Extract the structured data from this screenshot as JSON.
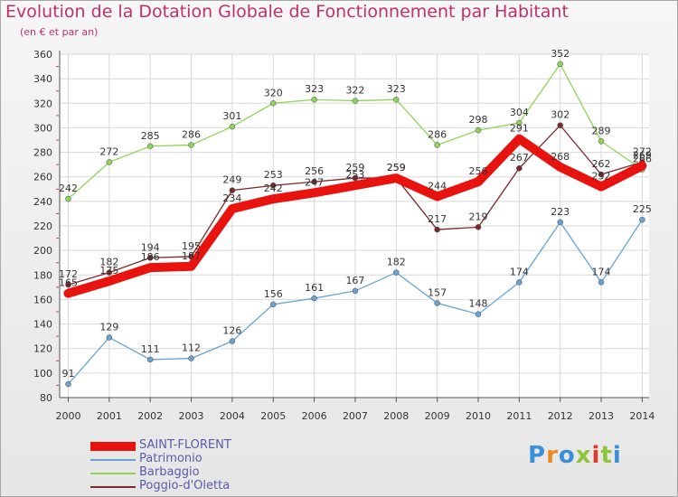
{
  "header": {
    "title": "Evolution de la Dotation Globale de Fonctionnement par Habitant",
    "subtitle": "(en € et par an)"
  },
  "logo": {
    "text": "Proxiti",
    "colors": [
      "#3a8fd8",
      "#e88a1e",
      "#3a8fd8",
      "#8fc43a",
      "#e23a2a",
      "#8fc43a",
      "#3a8fd8"
    ]
  },
  "chart_data": {
    "type": "line",
    "x": [
      2000,
      2001,
      2002,
      2003,
      2004,
      2005,
      2006,
      2007,
      2008,
      2009,
      2010,
      2011,
      2012,
      2013,
      2014
    ],
    "ylim": [
      80,
      360
    ],
    "yticks": [
      80,
      100,
      120,
      140,
      160,
      180,
      200,
      220,
      240,
      260,
      280,
      300,
      320,
      340,
      360
    ],
    "grid": true,
    "legend_position": "bottom-left",
    "series": [
      {
        "name": "SAINT-FLORENT",
        "color": "#e8120f",
        "highlight": true,
        "values": [
          165,
          175,
          186,
          187,
          234,
          242,
          247,
          253,
          259,
          244,
          256,
          291,
          268,
          252,
          269
        ]
      },
      {
        "name": "Patrimonio",
        "color": "#6aa3d1",
        "values": [
          91,
          129,
          111,
          112,
          126,
          156,
          161,
          167,
          182,
          157,
          148,
          174,
          223,
          174,
          225
        ]
      },
      {
        "name": "Barbaggio",
        "color": "#8fd45a",
        "values": [
          242,
          272,
          285,
          286,
          301,
          320,
          323,
          322,
          323,
          286,
          298,
          304,
          352,
          289,
          266
        ]
      },
      {
        "name": "Poggio-d'Oletta",
        "color": "#7a2a2a",
        "values": [
          172,
          182,
          194,
          195,
          249,
          253,
          256,
          259,
          259,
          217,
          219,
          267,
          302,
          262,
          272
        ]
      }
    ]
  }
}
